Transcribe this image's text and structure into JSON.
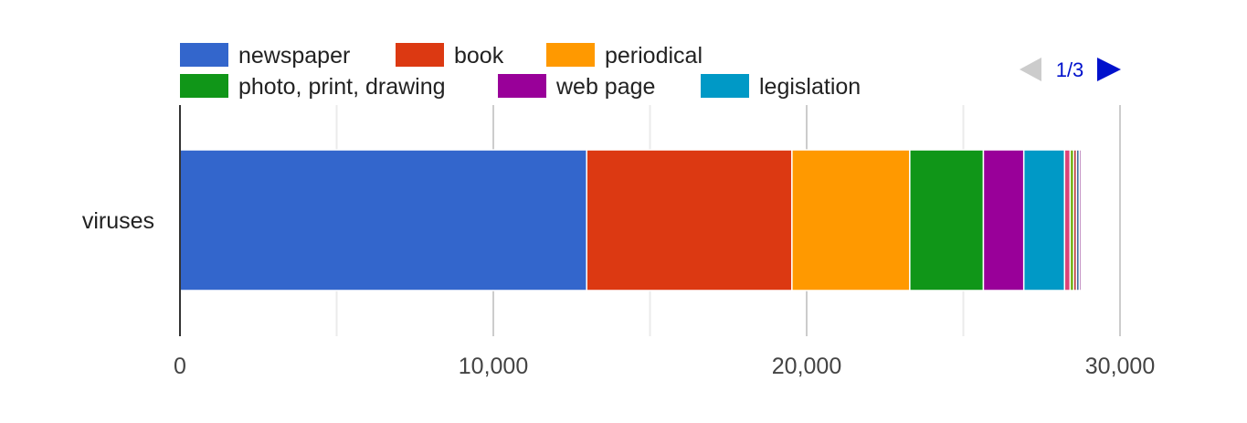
{
  "chart_data": {
    "type": "bar",
    "orientation": "horizontal",
    "stacked": true,
    "categories": [
      "viruses"
    ],
    "series": [
      {
        "name": "newspaper",
        "values": [
          12980
        ],
        "color": "#3366cc"
      },
      {
        "name": "book",
        "values": [
          6550
        ],
        "color": "#dc3912"
      },
      {
        "name": "periodical",
        "values": [
          3760
        ],
        "color": "#ff9900"
      },
      {
        "name": "photo, print, drawing",
        "values": [
          2350
        ],
        "color": "#109618"
      },
      {
        "name": "web page",
        "values": [
          1290
        ],
        "color": "#990099"
      },
      {
        "name": "legislation",
        "values": [
          1300
        ],
        "color": "#0099c6"
      },
      {
        "name": "",
        "values": [
          180
        ],
        "color": "#dd4477"
      },
      {
        "name": "",
        "values": [
          110
        ],
        "color": "#66aa00"
      },
      {
        "name": "",
        "values": [
          90
        ],
        "color": "#b82e2e"
      },
      {
        "name": "",
        "values": [
          90
        ],
        "color": "#316395"
      },
      {
        "name": "",
        "values": [
          60
        ],
        "color": "#994499"
      }
    ],
    "xlim": [
      0,
      30000
    ],
    "xticks": [
      0,
      10000,
      20000,
      30000
    ],
    "xtick_labels": [
      "0",
      "10,000",
      "20,000",
      "30,000"
    ],
    "minor_gridlines": [
      5000,
      15000,
      25000
    ],
    "legend_position": "top",
    "legend_pager": {
      "label": "1/3",
      "prev_icon": "triangle-left-icon",
      "next_icon": "triangle-right-icon",
      "prev_enabled": false,
      "next_enabled": true
    }
  }
}
